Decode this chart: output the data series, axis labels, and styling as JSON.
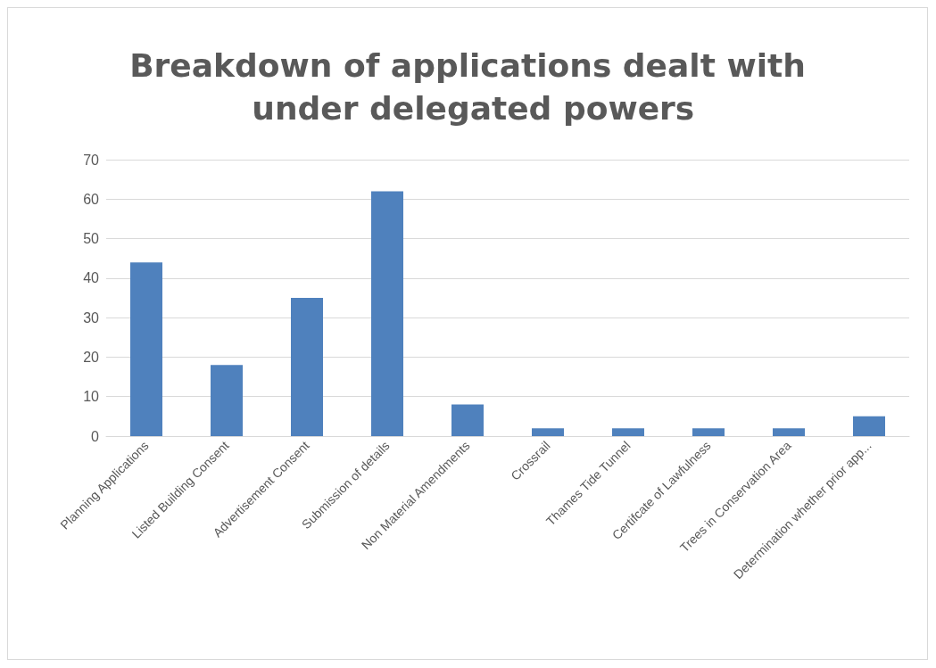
{
  "chart_data": {
    "type": "bar",
    "title": "Breakdown of applications dealt with under delegated powers",
    "categories": [
      "Planning Applications",
      "Listed Building Consent",
      "Advertisement Consent",
      "Submission of details",
      "Non Material Amendments",
      "Crossrail",
      "Thames Tide Tunnel",
      "Certifcate of Lawfulness",
      "Trees in Conservation Area",
      "Determination whether prior app..."
    ],
    "values": [
      44,
      18,
      35,
      62,
      8,
      2,
      2,
      2,
      2,
      5
    ],
    "color": "#4f81bd",
    "ylim": [
      0,
      70
    ],
    "yticks": [
      0,
      10,
      20,
      30,
      40,
      50,
      60,
      70
    ],
    "grid": "y"
  }
}
